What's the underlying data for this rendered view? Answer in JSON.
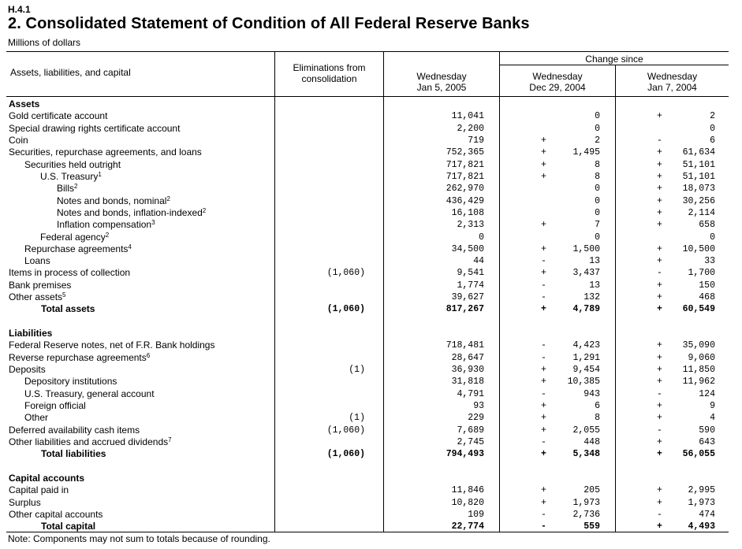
{
  "release": "H.4.1",
  "title": "2. Consolidated Statement of Condition of All Federal Reserve Banks",
  "units": "Millions of dollars",
  "headers": {
    "item": "Assets, liabilities, and capital",
    "elim_line1": "Eliminations from",
    "elim_line2": "consolidation",
    "col1_line1": "Wednesday",
    "col1_line2": "Jan 5, 2005",
    "change_since": "Change since",
    "col2_line1": "Wednesday",
    "col2_line2": "Dec 29, 2004",
    "col3_line1": "Wednesday",
    "col3_line2": "Jan 7, 2004"
  },
  "note": "Note: Components may not sum to totals because of rounding.",
  "rows": [
    {
      "label": "Assets",
      "indent": 0,
      "bold": true,
      "elim": "",
      "value": "",
      "s1": "",
      "c1": "",
      "s2": "",
      "c2": ""
    },
    {
      "label": "Gold certificate account",
      "indent": 0,
      "bold": false,
      "elim": "",
      "value": "11,041",
      "s1": "",
      "c1": "0",
      "s2": "+",
      "c2": "2"
    },
    {
      "label": "Special drawing rights certificate account",
      "indent": 0,
      "bold": false,
      "elim": "",
      "value": "2,200",
      "s1": "",
      "c1": "0",
      "s2": "",
      "c2": "0"
    },
    {
      "label": "Coin",
      "indent": 0,
      "bold": false,
      "elim": "",
      "value": "719",
      "s1": "+",
      "c1": "2",
      "s2": "-",
      "c2": "6"
    },
    {
      "label": "Securities, repurchase agreements, and loans",
      "indent": 0,
      "bold": false,
      "elim": "",
      "value": "752,365",
      "s1": "+",
      "c1": "1,495",
      "s2": "+",
      "c2": "61,634"
    },
    {
      "label": "Securities held outright",
      "indent": 1,
      "bold": false,
      "elim": "",
      "value": "717,821",
      "s1": "+",
      "c1": "8",
      "s2": "+",
      "c2": "51,101"
    },
    {
      "label": "U.S. Treasury",
      "sup": "1",
      "indent": 2,
      "bold": false,
      "elim": "",
      "value": "717,821",
      "s1": "+",
      "c1": "8",
      "s2": "+",
      "c2": "51,101"
    },
    {
      "label": "Bills",
      "sup": "2",
      "indent": 3,
      "bold": false,
      "elim": "",
      "value": "262,970",
      "s1": "",
      "c1": "0",
      "s2": "+",
      "c2": "18,073"
    },
    {
      "label": "Notes and bonds, nominal",
      "sup": "2",
      "indent": 3,
      "bold": false,
      "elim": "",
      "value": "436,429",
      "s1": "",
      "c1": "0",
      "s2": "+",
      "c2": "30,256"
    },
    {
      "label": "Notes and bonds, inflation-indexed",
      "sup": "2",
      "indent": 3,
      "bold": false,
      "elim": "",
      "value": "16,108",
      "s1": "",
      "c1": "0",
      "s2": "+",
      "c2": "2,114"
    },
    {
      "label": "Inflation compensation",
      "sup": "3",
      "indent": 3,
      "bold": false,
      "elim": "",
      "value": "2,313",
      "s1": "+",
      "c1": "7",
      "s2": "+",
      "c2": "658"
    },
    {
      "label": "Federal agency",
      "sup": "2",
      "indent": 2,
      "bold": false,
      "elim": "",
      "value": "0",
      "s1": "",
      "c1": "0",
      "s2": "",
      "c2": "0"
    },
    {
      "label": "Repurchase agreements",
      "sup": "4",
      "indent": 1,
      "bold": false,
      "elim": "",
      "value": "34,500",
      "s1": "+",
      "c1": "1,500",
      "s2": "+",
      "c2": "10,500"
    },
    {
      "label": "Loans",
      "indent": 1,
      "bold": false,
      "elim": "",
      "value": "44",
      "s1": "-",
      "c1": "13",
      "s2": "+",
      "c2": "33"
    },
    {
      "label": "Items in process of collection",
      "indent": 0,
      "bold": false,
      "elim": "(1,060)",
      "value": "9,541",
      "s1": "+",
      "c1": "3,437",
      "s2": "-",
      "c2": "1,700"
    },
    {
      "label": "Bank premises",
      "indent": 0,
      "bold": false,
      "elim": "",
      "value": "1,774",
      "s1": "-",
      "c1": "13",
      "s2": "+",
      "c2": "150"
    },
    {
      "label": "Other assets",
      "sup": "5",
      "indent": 0,
      "bold": false,
      "elim": "",
      "value": "39,627",
      "s1": "-",
      "c1": "132",
      "s2": "+",
      "c2": "468"
    },
    {
      "label": "Total assets",
      "indent": 4,
      "bold": true,
      "elim": "(1,060)",
      "value": "817,267",
      "s1": "+",
      "c1": "4,789",
      "s2": "+",
      "c2": "60,549"
    },
    {
      "label": "",
      "indent": 0,
      "bold": false,
      "elim": "",
      "value": "",
      "s1": "",
      "c1": "",
      "s2": "",
      "c2": ""
    },
    {
      "label": "Liabilities",
      "indent": 0,
      "bold": true,
      "elim": "",
      "value": "",
      "s1": "",
      "c1": "",
      "s2": "",
      "c2": ""
    },
    {
      "label": "Federal Reserve notes, net of F.R. Bank holdings",
      "indent": 0,
      "bold": false,
      "elim": "",
      "value": "718,481",
      "s1": "-",
      "c1": "4,423",
      "s2": "+",
      "c2": "35,090"
    },
    {
      "label": "Reverse repurchase agreements",
      "sup": "6",
      "indent": 0,
      "bold": false,
      "elim": "",
      "value": "28,647",
      "s1": "-",
      "c1": "1,291",
      "s2": "+",
      "c2": "9,060"
    },
    {
      "label": "Deposits",
      "indent": 0,
      "bold": false,
      "elim": "(1)",
      "value": "36,930",
      "s1": "+",
      "c1": "9,454",
      "s2": "+",
      "c2": "11,850"
    },
    {
      "label": "Depository institutions",
      "indent": 1,
      "bold": false,
      "elim": "",
      "value": "31,818",
      "s1": "+",
      "c1": "10,385",
      "s2": "+",
      "c2": "11,962"
    },
    {
      "label": "U.S. Treasury, general account",
      "indent": 1,
      "bold": false,
      "elim": "",
      "value": "4,791",
      "s1": "-",
      "c1": "943",
      "s2": "-",
      "c2": "124"
    },
    {
      "label": "Foreign official",
      "indent": 1,
      "bold": false,
      "elim": "",
      "value": "93",
      "s1": "+",
      "c1": "6",
      "s2": "+",
      "c2": "9"
    },
    {
      "label": "Other",
      "indent": 1,
      "bold": false,
      "elim": "(1)",
      "value": "229",
      "s1": "+",
      "c1": "8",
      "s2": "+",
      "c2": "4"
    },
    {
      "label": "Deferred availability cash items",
      "indent": 0,
      "bold": false,
      "elim": "(1,060)",
      "value": "7,689",
      "s1": "+",
      "c1": "2,055",
      "s2": "-",
      "c2": "590"
    },
    {
      "label": "Other liabilities and accrued dividends",
      "sup": "7",
      "indent": 0,
      "bold": false,
      "elim": "",
      "value": "2,745",
      "s1": "-",
      "c1": "448",
      "s2": "+",
      "c2": "643"
    },
    {
      "label": "Total liabilities",
      "indent": 4,
      "bold": true,
      "elim": "(1,060)",
      "value": "794,493",
      "s1": "+",
      "c1": "5,348",
      "s2": "+",
      "c2": "56,055"
    },
    {
      "label": "",
      "indent": 0,
      "bold": false,
      "elim": "",
      "value": "",
      "s1": "",
      "c1": "",
      "s2": "",
      "c2": ""
    },
    {
      "label": "Capital accounts",
      "indent": 0,
      "bold": true,
      "elim": "",
      "value": "",
      "s1": "",
      "c1": "",
      "s2": "",
      "c2": ""
    },
    {
      "label": "Capital paid in",
      "indent": 0,
      "bold": false,
      "elim": "",
      "value": "11,846",
      "s1": "+",
      "c1": "205",
      "s2": "+",
      "c2": "2,995"
    },
    {
      "label": "Surplus",
      "indent": 0,
      "bold": false,
      "elim": "",
      "value": "10,820",
      "s1": "+",
      "c1": "1,973",
      "s2": "+",
      "c2": "1,973"
    },
    {
      "label": "Other capital accounts",
      "indent": 0,
      "bold": false,
      "elim": "",
      "value": "109",
      "s1": "-",
      "c1": "2,736",
      "s2": "-",
      "c2": "474"
    },
    {
      "label": "Total capital",
      "indent": 4,
      "bold": true,
      "elim": "",
      "value": "22,774",
      "s1": "-",
      "c1": "559",
      "s2": "+",
      "c2": "4,493"
    }
  ]
}
